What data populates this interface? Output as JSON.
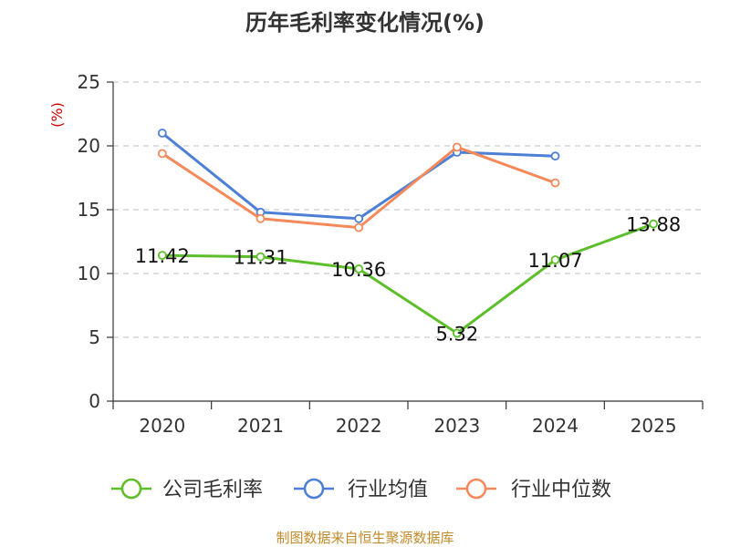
{
  "chart_data": {
    "type": "line",
    "title": "历年毛利率变化情况(%)",
    "ylabel": "(%)",
    "xlabel": "",
    "categories": [
      "2020",
      "2021",
      "2022",
      "2023",
      "2024",
      "2025"
    ],
    "y_ticks": [
      "0",
      "5",
      "10",
      "15",
      "20",
      "25"
    ],
    "ylim": [
      0,
      25
    ],
    "grid": true,
    "legend_position": "bottom",
    "series": [
      {
        "name": "公司毛利率",
        "color": "#5cbf2a",
        "values": [
          11.42,
          11.31,
          10.36,
          5.32,
          11.07,
          13.88
        ],
        "labels": [
          "11.42",
          "11.31",
          "10.36",
          "5.32",
          "11.07",
          "13.88"
        ]
      },
      {
        "name": "行业均值",
        "color": "#4d7fd6",
        "values": [
          21.0,
          14.8,
          14.3,
          19.5,
          19.2,
          null
        ]
      },
      {
        "name": "行业中位数",
        "color": "#f5895a",
        "values": [
          19.4,
          14.3,
          13.6,
          19.9,
          17.1,
          null
        ]
      }
    ],
    "source": "制图数据来自恒生聚源数据库"
  }
}
